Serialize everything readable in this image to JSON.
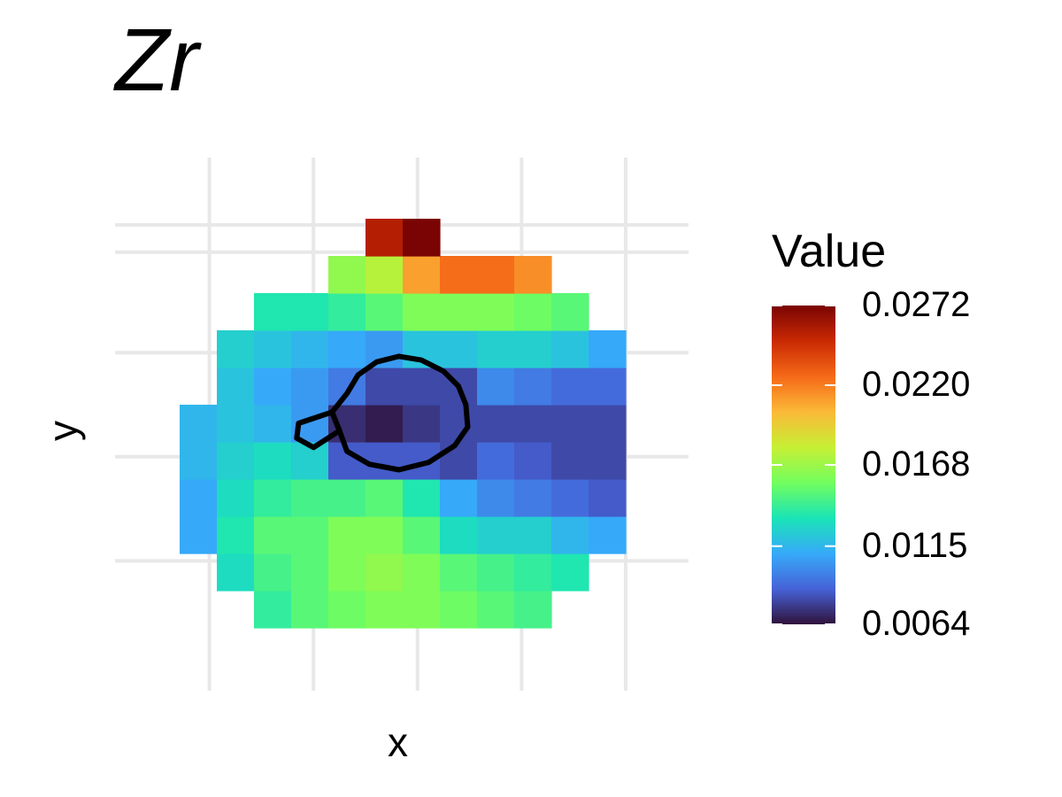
{
  "chart_data": {
    "type": "heatmap",
    "title": "Zr",
    "xlabel": "x",
    "ylabel": "y",
    "x": [
      1,
      2,
      3,
      4,
      5,
      6,
      7,
      8,
      9,
      10,
      11,
      12
    ],
    "y": [
      1,
      2,
      3,
      4,
      5,
      6,
      7,
      8,
      9,
      10,
      11
    ],
    "values": [
      [
        null,
        null,
        0.014,
        0.015,
        0.0155,
        0.016,
        0.016,
        0.0155,
        0.015,
        0.0145,
        null,
        null
      ],
      [
        null,
        0.013,
        0.0145,
        0.015,
        0.016,
        0.0165,
        0.016,
        0.015,
        0.0145,
        0.014,
        0.0135,
        null
      ],
      [
        0.011,
        0.0135,
        0.015,
        0.015,
        0.016,
        0.016,
        0.015,
        0.013,
        0.0125,
        0.0125,
        0.0115,
        0.011
      ],
      [
        0.011,
        0.013,
        0.014,
        0.0145,
        0.0145,
        0.015,
        0.0135,
        0.011,
        0.01,
        0.0095,
        0.009,
        0.0085
      ],
      [
        0.0115,
        0.0125,
        0.013,
        0.0125,
        0.0085,
        0.0085,
        0.0085,
        0.008,
        0.009,
        0.0085,
        0.008,
        0.008
      ],
      [
        0.0115,
        0.012,
        0.0115,
        0.0105,
        0.0072,
        0.0067,
        0.0075,
        0.008,
        0.008,
        0.008,
        0.008,
        0.008
      ],
      [
        null,
        0.012,
        0.011,
        0.0105,
        0.0095,
        0.008,
        0.008,
        0.008,
        0.01,
        0.0095,
        0.009,
        0.009
      ],
      [
        null,
        0.0125,
        0.012,
        0.0115,
        0.011,
        0.0105,
        0.012,
        0.012,
        0.0125,
        0.0125,
        0.012,
        0.011
      ],
      [
        null,
        null,
        0.0135,
        0.0135,
        0.014,
        0.015,
        0.016,
        0.016,
        0.016,
        0.0155,
        0.015,
        null
      ],
      [
        null,
        null,
        null,
        null,
        0.0165,
        0.0175,
        0.021,
        0.0225,
        0.0225,
        0.0215,
        null,
        null
      ],
      [
        null,
        null,
        null,
        null,
        null,
        0.0255,
        0.0272,
        null,
        null,
        null,
        null,
        null
      ]
    ],
    "contour_polygons": [
      [
        [
          5.0,
          6.8
        ],
        [
          5.3,
          7.3
        ],
        [
          5.8,
          7.65
        ],
        [
          6.4,
          7.8
        ],
        [
          7.0,
          7.7
        ],
        [
          7.6,
          7.4
        ],
        [
          8.0,
          7.0
        ],
        [
          8.2,
          6.5
        ],
        [
          8.25,
          5.9
        ],
        [
          7.9,
          5.4
        ],
        [
          7.2,
          4.95
        ],
        [
          6.4,
          4.75
        ],
        [
          5.6,
          4.9
        ],
        [
          5.0,
          5.25
        ],
        [
          4.8,
          5.8
        ],
        [
          4.6,
          6.3
        ],
        [
          5.0,
          6.8
        ]
      ],
      [
        [
          4.6,
          6.3
        ],
        [
          3.7,
          6.0
        ],
        [
          3.65,
          5.6
        ],
        [
          4.1,
          5.35
        ],
        [
          4.8,
          5.8
        ],
        [
          4.6,
          6.3
        ]
      ]
    ],
    "xlim": [
      0.5,
      12.5
    ],
    "ylim": [
      0.5,
      11.5
    ],
    "grid": true,
    "colorbar": {
      "title": "Value",
      "ticks": [
        "0.0064",
        "0.0115",
        "0.0168",
        "0.0220",
        "0.0272"
      ],
      "min": 0.0064,
      "max": 0.0272,
      "colormap": "turbo",
      "colors": [
        "#30123b",
        "#4662d7",
        "#36aaf9",
        "#1ae4b6",
        "#72fe5e",
        "#c7ef34",
        "#fbb938",
        "#f56918",
        "#c92903",
        "#7a0403"
      ]
    }
  }
}
